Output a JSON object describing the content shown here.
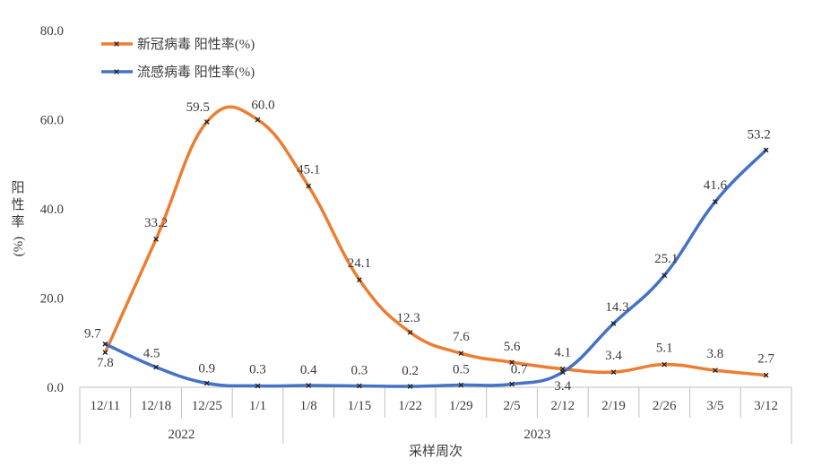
{
  "chart_data": {
    "type": "line",
    "xlabel": "采样周次",
    "ylabel": "阳性率(%)",
    "ylabel_parts": [
      "阳",
      "性",
      "率",
      "(%)"
    ],
    "ylim": [
      0,
      80
    ],
    "yticks": [
      "0.0",
      "20.0",
      "40.0",
      "60.0",
      "80.0"
    ],
    "grid": false,
    "legend_position": "top-left",
    "categories": [
      "12/11",
      "12/18",
      "12/25",
      "1/1",
      "1/8",
      "1/15",
      "1/22",
      "1/29",
      "2/5",
      "2/12",
      "2/19",
      "2/26",
      "3/5",
      "3/12"
    ],
    "year_groups": [
      {
        "label": "2022",
        "count": 4
      },
      {
        "label": "2023",
        "count": 10
      }
    ],
    "series": [
      {
        "name": "新冠病毒 阳性率(%)",
        "color": "#ED7D31",
        "values": [
          7.8,
          33.2,
          59.5,
          60.0,
          45.1,
          24.1,
          12.3,
          7.6,
          5.6,
          4.1,
          3.4,
          5.1,
          3.8,
          2.7
        ]
      },
      {
        "name": "流感病毒 阳性率(%)",
        "color": "#4472C4",
        "values": [
          9.7,
          4.5,
          0.9,
          0.3,
          0.4,
          0.3,
          0.2,
          0.5,
          0.7,
          3.4,
          14.3,
          25.1,
          41.6,
          53.2
        ]
      }
    ],
    "value_labels": {
      "series0": [
        "7.8",
        "33.2",
        "59.5",
        "60.0",
        "45.1",
        "24.1",
        "12.3",
        "7.6",
        "5.6",
        "4.1",
        "3.4",
        "5.1",
        "3.8",
        "2.7"
      ],
      "series1": [
        "9.7",
        "4.5",
        "0.9",
        "0.3",
        "0.4",
        "0.3",
        "0.2",
        "0.5",
        "0.7",
        "3.4",
        "14.3",
        "25.1",
        "41.6",
        "53.2"
      ]
    }
  }
}
